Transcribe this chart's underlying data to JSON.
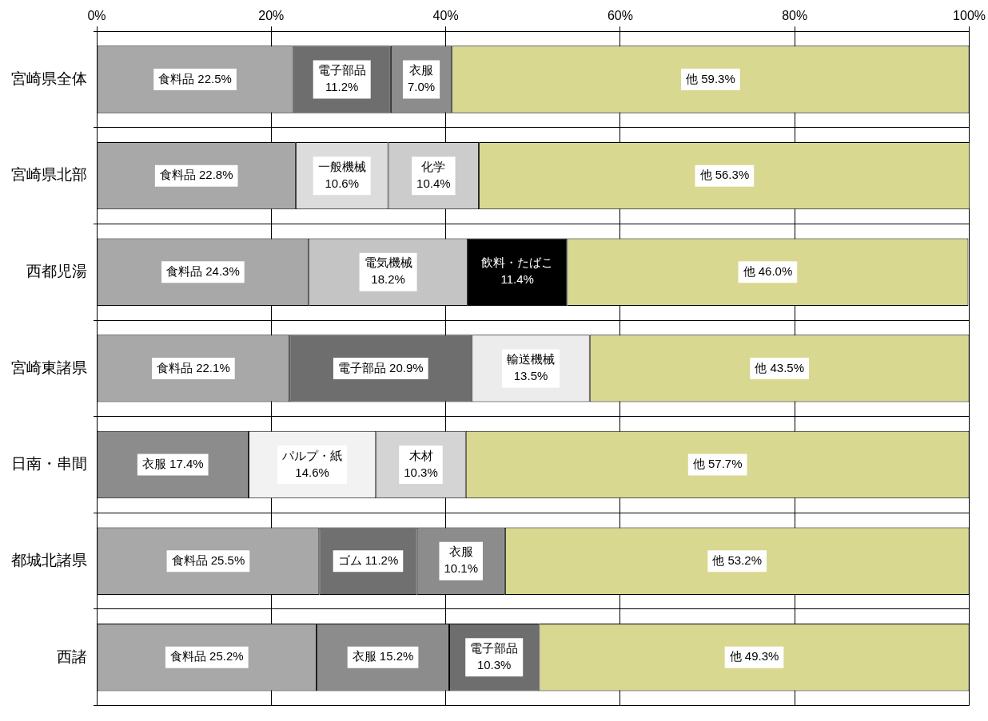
{
  "chart_data": {
    "type": "bar",
    "orientation": "horizontal",
    "stacked": true,
    "grid": true,
    "legend": false,
    "categories": [
      "宮崎県全体",
      "宮崎県北部",
      "西都児湯",
      "宮崎東諸県",
      "日南・串間",
      "都城北諸県",
      "西諸"
    ],
    "xlim": [
      0,
      100
    ],
    "xticks": [
      {
        "value": 0,
        "label": "0%"
      },
      {
        "value": 20,
        "label": "20%"
      },
      {
        "value": 40,
        "label": "40%"
      },
      {
        "value": 60,
        "label": "60%"
      },
      {
        "value": 80,
        "label": "80%"
      },
      {
        "value": 100,
        "label": "100%"
      }
    ],
    "series": [
      {
        "values": [
          22.5,
          22.8,
          24.3,
          22.1,
          17.4,
          25.5,
          25.2
        ],
        "colors": [
          "#a8a8a8",
          "#a8a8a8",
          "#a8a8a8",
          "#a8a8a8",
          "#8c8c8c",
          "#a8a8a8",
          "#a8a8a8"
        ],
        "value_labels": [
          "食料品 22.5%",
          "食料品 22.8%",
          "食料品 24.3%",
          "食料品 22.1%",
          "衣服 17.4%",
          "食料品 25.5%",
          "食料品 25.2%"
        ]
      },
      {
        "values": [
          11.2,
          10.6,
          18.2,
          20.9,
          14.6,
          11.2,
          15.2
        ],
        "colors": [
          "#6e6e6e",
          "#dcdcdc",
          "#c4c4c4",
          "#6e6e6e",
          "#f2f2f2",
          "#707070",
          "#8c8c8c"
        ],
        "value_labels": [
          "電子部品\n11.2%",
          "一般機械\n10.6%",
          "電気機械\n18.2%",
          "電子部品 20.9%",
          "パルプ・紙\n14.6%",
          "ゴム 11.2%",
          "衣服 15.2%"
        ]
      },
      {
        "values": [
          7.0,
          10.4,
          11.4,
          13.5,
          10.3,
          10.1,
          10.3
        ],
        "colors": [
          "#8c8c8c",
          "#cccccc",
          "#000000",
          "#ececec",
          "#d4d4d4",
          "#8c8c8c",
          "#6e6e6e"
        ],
        "value_labels": [
          "衣服\n7.0%",
          "化学\n10.4%",
          "飲料・たばこ\n11.4%",
          "輸送機械\n13.5%",
          "木材\n10.3%",
          "衣服\n10.1%",
          "電子部品\n10.3%"
        ]
      },
      {
        "values": [
          59.3,
          56.3,
          46.0,
          43.5,
          57.7,
          53.2,
          49.3
        ],
        "colors": [
          "#d8d890",
          "#d8d890",
          "#d8d890",
          "#d8d890",
          "#d8d890",
          "#d8d890",
          "#d8d890"
        ],
        "value_labels": [
          "他 59.3%",
          "他 56.3%",
          "他 46.0%",
          "他 43.5%",
          "他 57.7%",
          "他 53.2%",
          "他 49.3%"
        ]
      }
    ]
  }
}
